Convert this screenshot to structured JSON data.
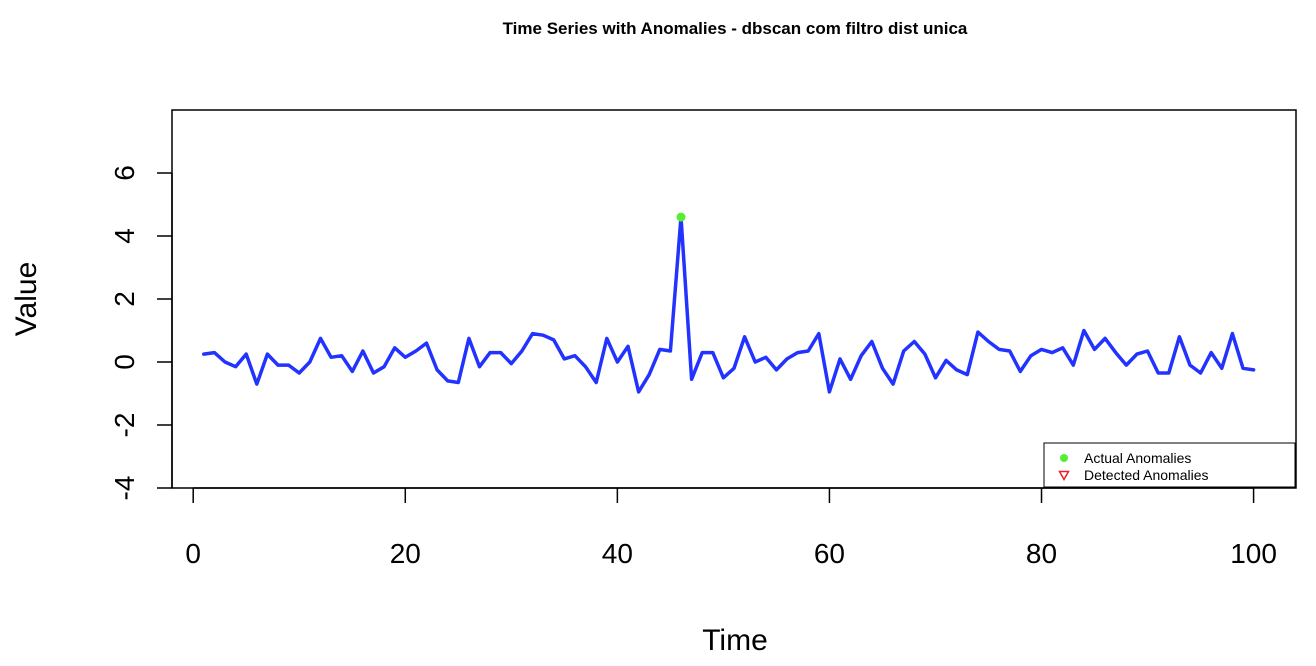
{
  "chart_data": {
    "type": "line",
    "title": "Time Series with Anomalies - dbscan com filtro dist unica",
    "xlabel": "Time",
    "ylabel": "Value",
    "xlim": [
      -2,
      104
    ],
    "ylim": [
      -4,
      8
    ],
    "x_ticks": [
      0,
      20,
      40,
      60,
      80,
      100
    ],
    "y_ticks": [
      -4,
      -2,
      0,
      2,
      4,
      6
    ],
    "grid": false,
    "legend_position": "bottom-right",
    "series": [
      {
        "color": "#2233ff",
        "x": [
          1,
          2,
          3,
          4,
          5,
          6,
          7,
          8,
          9,
          10,
          11,
          12,
          13,
          14,
          15,
          16,
          17,
          18,
          19,
          20,
          21,
          22,
          23,
          24,
          25,
          26,
          27,
          28,
          29,
          30,
          31,
          32,
          33,
          34,
          35,
          36,
          37,
          38,
          39,
          40,
          41,
          42,
          43,
          44,
          45,
          46,
          47,
          48,
          49,
          50,
          51,
          52,
          53,
          54,
          55,
          56,
          57,
          58,
          59,
          60,
          61,
          62,
          63,
          64,
          65,
          66,
          67,
          68,
          69,
          70,
          71,
          72,
          73,
          74,
          75,
          76,
          77,
          78,
          79,
          80,
          81,
          82,
          83,
          84,
          85,
          86,
          87,
          88,
          89,
          90,
          91,
          92,
          93,
          94,
          95,
          96,
          97,
          98,
          99,
          100
        ],
        "values": [
          0.25,
          0.3,
          0.0,
          -0.15,
          0.25,
          -0.7,
          0.25,
          -0.1,
          -0.1,
          -0.35,
          0.0,
          0.75,
          0.15,
          0.2,
          -0.3,
          0.35,
          -0.35,
          -0.15,
          0.45,
          0.15,
          0.35,
          0.6,
          -0.25,
          -0.6,
          -0.65,
          0.75,
          -0.15,
          0.3,
          0.3,
          -0.05,
          0.35,
          0.9,
          0.85,
          0.7,
          0.1,
          0.2,
          -0.15,
          -0.65,
          0.75,
          0.0,
          0.5,
          -0.95,
          -0.4,
          0.4,
          0.35,
          4.6,
          -0.55,
          0.3,
          0.3,
          -0.5,
          -0.2,
          0.8,
          0.0,
          0.15,
          -0.25,
          0.1,
          0.3,
          0.35,
          0.9,
          -0.95,
          0.1,
          -0.55,
          0.2,
          0.65,
          -0.2,
          -0.7,
          0.35,
          0.65,
          0.25,
          -0.5,
          0.05,
          -0.25,
          -0.4,
          0.95,
          0.65,
          0.4,
          0.35,
          -0.3,
          0.2,
          0.4,
          0.3,
          0.45,
          -0.1,
          1.0,
          0.4,
          0.75,
          0.3,
          -0.1,
          0.25,
          0.35,
          -0.35,
          -0.35,
          0.8,
          -0.1,
          -0.35,
          0.3,
          -0.2,
          0.9,
          -0.2,
          -0.25
        ]
      }
    ],
    "actual_anomalies": {
      "name": "Actual Anomalies",
      "color": "#55ee33",
      "points": [
        {
          "x": 46,
          "y": 4.6
        }
      ]
    },
    "detected_anomalies": {
      "name": "Detected Anomalies",
      "color": "#ee2222",
      "points": []
    }
  }
}
